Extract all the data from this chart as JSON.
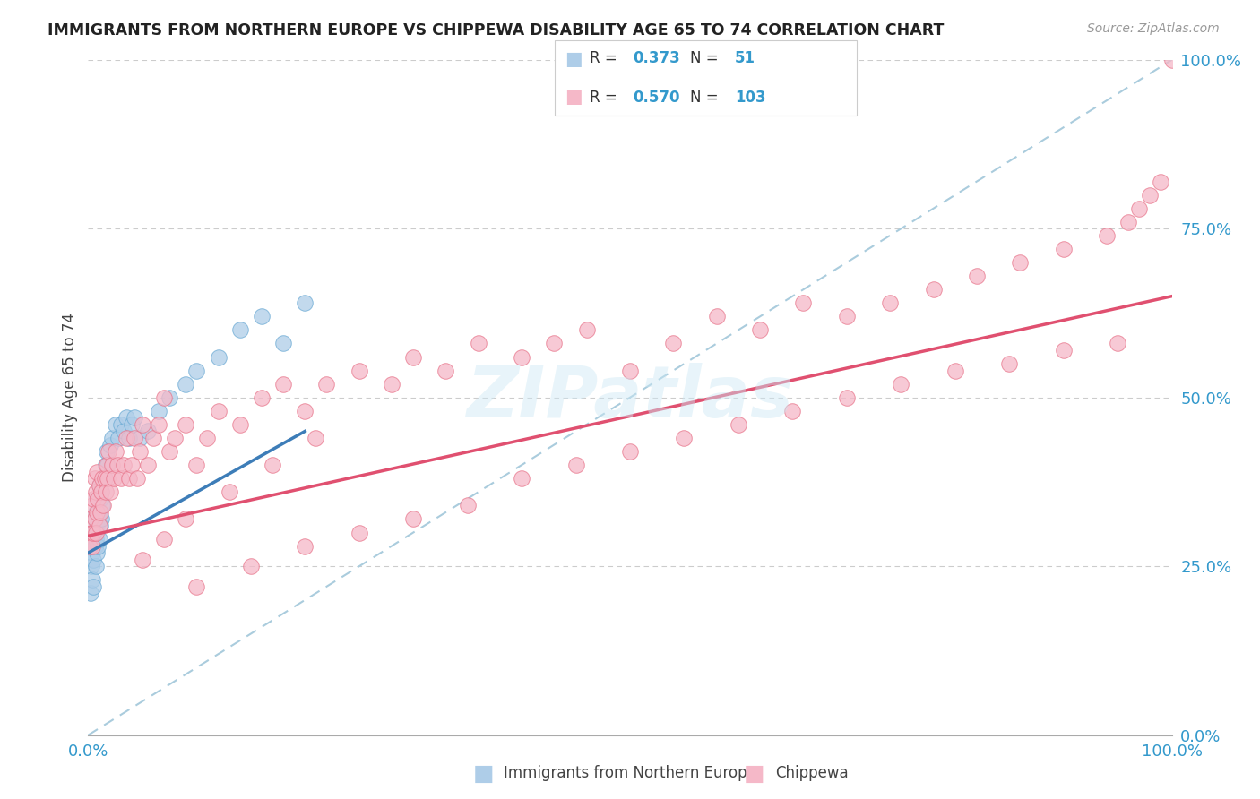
{
  "title": "IMMIGRANTS FROM NORTHERN EUROPE VS CHIPPEWA DISABILITY AGE 65 TO 74 CORRELATION CHART",
  "source": "Source: ZipAtlas.com",
  "ylabel": "Disability Age 65 to 74",
  "ylabel_right_ticks": [
    "0.0%",
    "25.0%",
    "50.0%",
    "75.0%",
    "100.0%"
  ],
  "ylabel_right_vals": [
    0.0,
    0.25,
    0.5,
    0.75,
    1.0
  ],
  "xtick_labels": [
    "0.0%",
    "100.0%"
  ],
  "xtick_vals": [
    0.0,
    1.0
  ],
  "legend_blue_r": "0.373",
  "legend_blue_n": "51",
  "legend_pink_r": "0.570",
  "legend_pink_n": "103",
  "blue_fill": "#aecde8",
  "pink_fill": "#f5b8c8",
  "blue_edge": "#6aaad4",
  "pink_edge": "#e8748a",
  "blue_line": "#3d7db8",
  "pink_line": "#e05070",
  "dash_line": "#aaccdd",
  "watermark": "ZIPatlas",
  "legend_text_color": "#333333",
  "legend_val_color": "#3399cc",
  "tick_color": "#3399cc",
  "blue_x": [
    0.002,
    0.003,
    0.003,
    0.004,
    0.004,
    0.005,
    0.005,
    0.005,
    0.006,
    0.006,
    0.007,
    0.007,
    0.007,
    0.008,
    0.008,
    0.008,
    0.009,
    0.009,
    0.01,
    0.01,
    0.01,
    0.011,
    0.011,
    0.012,
    0.012,
    0.013,
    0.015,
    0.016,
    0.017,
    0.018,
    0.02,
    0.022,
    0.025,
    0.028,
    0.03,
    0.033,
    0.035,
    0.038,
    0.04,
    0.043,
    0.048,
    0.055,
    0.065,
    0.075,
    0.09,
    0.1,
    0.12,
    0.14,
    0.16,
    0.18,
    0.2
  ],
  "blue_y": [
    0.21,
    0.25,
    0.28,
    0.23,
    0.27,
    0.22,
    0.26,
    0.3,
    0.28,
    0.32,
    0.25,
    0.29,
    0.33,
    0.27,
    0.31,
    0.35,
    0.28,
    0.33,
    0.29,
    0.33,
    0.37,
    0.31,
    0.35,
    0.32,
    0.36,
    0.34,
    0.38,
    0.4,
    0.42,
    0.4,
    0.43,
    0.44,
    0.46,
    0.44,
    0.46,
    0.45,
    0.47,
    0.44,
    0.46,
    0.47,
    0.44,
    0.45,
    0.48,
    0.5,
    0.52,
    0.54,
    0.56,
    0.6,
    0.62,
    0.58,
    0.64
  ],
  "pink_x": [
    0.001,
    0.002,
    0.003,
    0.004,
    0.004,
    0.005,
    0.005,
    0.006,
    0.006,
    0.007,
    0.007,
    0.008,
    0.008,
    0.009,
    0.01,
    0.01,
    0.011,
    0.012,
    0.013,
    0.014,
    0.015,
    0.016,
    0.017,
    0.018,
    0.019,
    0.02,
    0.022,
    0.024,
    0.025,
    0.027,
    0.03,
    0.033,
    0.035,
    0.038,
    0.04,
    0.043,
    0.045,
    0.048,
    0.05,
    0.055,
    0.06,
    0.065,
    0.07,
    0.075,
    0.08,
    0.09,
    0.1,
    0.11,
    0.12,
    0.14,
    0.16,
    0.18,
    0.2,
    0.22,
    0.25,
    0.28,
    0.3,
    0.33,
    0.36,
    0.4,
    0.43,
    0.46,
    0.5,
    0.54,
    0.58,
    0.62,
    0.66,
    0.7,
    0.74,
    0.78,
    0.82,
    0.86,
    0.9,
    0.94,
    0.96,
    0.97,
    0.98,
    0.99,
    0.1,
    0.15,
    0.2,
    0.25,
    0.3,
    0.35,
    0.4,
    0.45,
    0.5,
    0.55,
    0.6,
    0.65,
    0.7,
    0.75,
    0.8,
    0.85,
    0.9,
    0.95,
    1.0,
    0.05,
    0.07,
    0.09,
    0.13,
    0.17,
    0.21
  ],
  "pink_y": [
    0.28,
    0.32,
    0.3,
    0.34,
    0.28,
    0.3,
    0.35,
    0.32,
    0.38,
    0.3,
    0.36,
    0.33,
    0.39,
    0.35,
    0.31,
    0.37,
    0.33,
    0.36,
    0.38,
    0.34,
    0.38,
    0.36,
    0.4,
    0.38,
    0.42,
    0.36,
    0.4,
    0.38,
    0.42,
    0.4,
    0.38,
    0.4,
    0.44,
    0.38,
    0.4,
    0.44,
    0.38,
    0.42,
    0.46,
    0.4,
    0.44,
    0.46,
    0.5,
    0.42,
    0.44,
    0.46,
    0.4,
    0.44,
    0.48,
    0.46,
    0.5,
    0.52,
    0.48,
    0.52,
    0.54,
    0.52,
    0.56,
    0.54,
    0.58,
    0.56,
    0.58,
    0.6,
    0.54,
    0.58,
    0.62,
    0.6,
    0.64,
    0.62,
    0.64,
    0.66,
    0.68,
    0.7,
    0.72,
    0.74,
    0.76,
    0.78,
    0.8,
    0.82,
    0.22,
    0.25,
    0.28,
    0.3,
    0.32,
    0.34,
    0.38,
    0.4,
    0.42,
    0.44,
    0.46,
    0.48,
    0.5,
    0.52,
    0.54,
    0.55,
    0.57,
    0.58,
    1.0,
    0.26,
    0.29,
    0.32,
    0.36,
    0.4,
    0.44
  ],
  "blue_reg": [
    0.27,
    0.45
  ],
  "pink_reg": [
    0.295,
    0.65
  ],
  "blue_reg_xrange": [
    0.0,
    0.2
  ],
  "pink_reg_xrange": [
    0.0,
    1.0
  ]
}
